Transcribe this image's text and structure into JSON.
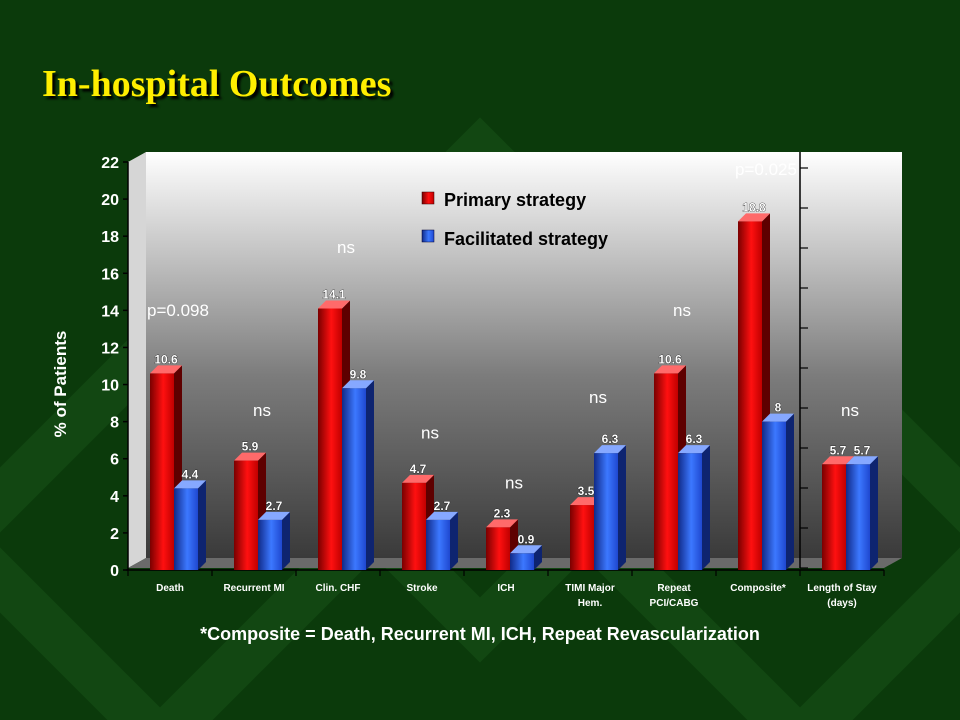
{
  "slide": {
    "title": "In-hospital Outcomes",
    "footnote": "*Composite = Death, Recurrent MI, ICH, Repeat Revascularization"
  },
  "chart_data": {
    "type": "bar",
    "title": "",
    "ylabel": "% of Patients",
    "ylim": [
      0,
      22
    ],
    "yticks": [
      0,
      2,
      4,
      6,
      8,
      10,
      12,
      14,
      16,
      18,
      20,
      22
    ],
    "categories": [
      [
        "Death"
      ],
      [
        "Recurrent MI"
      ],
      [
        "Clin. CHF"
      ],
      [
        "Stroke"
      ],
      [
        "ICH"
      ],
      [
        "TIMI Major",
        "Hem."
      ],
      [
        "Repeat",
        "PCI/CABG"
      ],
      [
        "Composite*"
      ],
      [
        "Length of Stay",
        "(days)"
      ]
    ],
    "series": [
      {
        "name": "Primary strategy",
        "color": "#e80000",
        "values": [
          10.6,
          5.9,
          14.1,
          4.7,
          2.3,
          3.5,
          10.6,
          18.8,
          5.7
        ],
        "labels": [
          "10.6",
          "5.9",
          "14.1",
          "4.7",
          "2.3",
          "3.5",
          "10.6",
          "18.8",
          "5.7"
        ]
      },
      {
        "name": "Facilitated strategy",
        "color": "#2f6bff",
        "values": [
          4.4,
          2.7,
          9.8,
          2.7,
          0.9,
          6.3,
          6.3,
          8,
          5.7
        ],
        "labels": [
          "4.4",
          "2.7",
          "9.8",
          "2.7",
          "0.9",
          "6.3",
          "6.3",
          "8",
          "5.7"
        ]
      }
    ],
    "annotations": [
      {
        "text": "p=0.098",
        "category": 0,
        "y": 13.7
      },
      {
        "text": "ns",
        "category": 1,
        "y": 8.3
      },
      {
        "text": "ns",
        "category": 2,
        "y": 17.1
      },
      {
        "text": "ns",
        "category": 3,
        "y": 7.1
      },
      {
        "text": "ns",
        "category": 4,
        "y": 4.4
      },
      {
        "text": "ns",
        "category": 5,
        "y": 9.0
      },
      {
        "text": "ns",
        "category": 6,
        "y": 13.7
      },
      {
        "text": "p=0.025",
        "category": 7,
        "y": 21.3
      },
      {
        "text": "ns",
        "category": 8,
        "y": 8.3
      }
    ],
    "legend_position": "top-center",
    "grid": false
  }
}
